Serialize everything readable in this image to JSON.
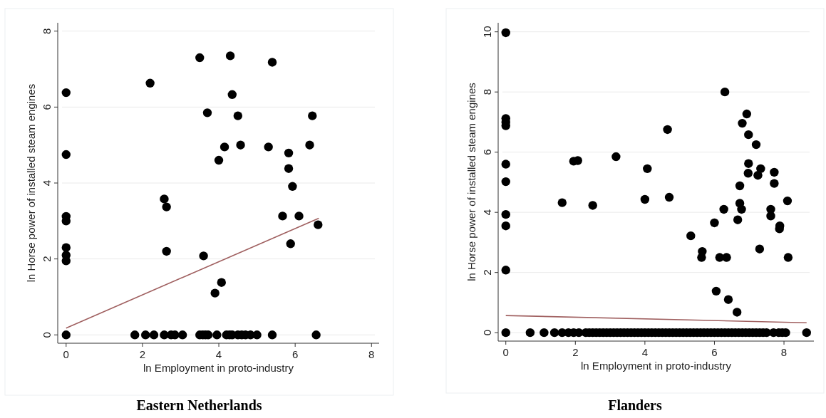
{
  "chart_data": [
    {
      "type": "scatter",
      "title": "Eastern Netherlands",
      "xlabel": "ln Employment in proto-industry",
      "ylabel": "ln Horse power of installed steam engines",
      "xlim": [
        -0.22,
        8.2
      ],
      "ylim": [
        -0.22,
        8.22
      ],
      "xticks": [
        0,
        2,
        4,
        6,
        8
      ],
      "yticks": [
        0,
        2,
        4,
        6,
        8
      ],
      "grid": "y",
      "series": [
        {
          "type": "scatter",
          "marker": "circle",
          "color": "#000000",
          "x": [
            0,
            0,
            0,
            0,
            0,
            0,
            0,
            0,
            2.2,
            3.5,
            4.3,
            5.4,
            4.35,
            3.7,
            4.5,
            6.45,
            4.15,
            4.57,
            5.3,
            6.38,
            4.0,
            5.83,
            5.83,
            5.93,
            2.57,
            2.63,
            5.67,
            6.1,
            6.6,
            5.88,
            2.63,
            3.6,
            4.07,
            3.9,
            1.8,
            2.08,
            2.3,
            2.57,
            2.75,
            2.85,
            3.05,
            3.5,
            3.58,
            3.65,
            3.72,
            3.95,
            4.2,
            4.28,
            4.35,
            4.5,
            4.6,
            4.7,
            4.83,
            5.0,
            5.4,
            6.55
          ],
          "values": [
            6.38,
            4.75,
            3.12,
            3.0,
            2.3,
            2.1,
            1.95,
            0,
            6.63,
            7.3,
            7.35,
            7.18,
            6.33,
            5.85,
            5.77,
            5.77,
            4.95,
            5.0,
            4.95,
            5.0,
            4.6,
            4.79,
            4.38,
            3.91,
            3.58,
            3.37,
            3.13,
            3.13,
            2.9,
            2.4,
            2.2,
            2.08,
            1.38,
            1.1,
            0,
            0,
            0,
            0,
            0,
            0,
            0,
            0,
            0,
            0,
            0,
            0,
            0,
            0,
            0,
            0,
            0,
            0,
            0,
            0,
            0,
            0
          ]
        },
        {
          "type": "line",
          "marker": "none",
          "color": "#a06060",
          "x": [
            0,
            6.62
          ],
          "values": [
            0.18,
            3.07
          ]
        }
      ]
    },
    {
      "type": "scatter",
      "title": "Flanders",
      "xlabel": "ln Employment in proto-industry",
      "ylabel": "ln Horse power of installed steam engines",
      "xlim": [
        -0.22,
        8.86
      ],
      "ylim": [
        -0.28,
        10.3
      ],
      "xticks": [
        0,
        2,
        4,
        6,
        8
      ],
      "yticks": [
        0,
        2,
        4,
        6,
        8,
        10
      ],
      "grid": "y",
      "series": [
        {
          "type": "scatter",
          "color": "#000000",
          "x": [
            0,
            0,
            0,
            0,
            0,
            0,
            0,
            0,
            0,
            0,
            1.95,
            2.07,
            3.17,
            4.07,
            4.65,
            6.3,
            6.93,
            6.8,
            6.98,
            7.2,
            6.98,
            6.97,
            7.25,
            7.33,
            7.72,
            7.72,
            6.73,
            1.62,
            2.5,
            4.0,
            4.7,
            8.1,
            6.73,
            6.78,
            6.27,
            7.62,
            7.62,
            6.67,
            6.0,
            7.88,
            7.87,
            5.32,
            5.65,
            5.63,
            6.15,
            6.35,
            7.3,
            8.12,
            6.05,
            6.4,
            6.65,
            0.7,
            1.1,
            1.4,
            1.62,
            1.8,
            1.95,
            2.1,
            2.3,
            2.4,
            2.5,
            2.6,
            2.7,
            2.8,
            2.9,
            3.0,
            3.1,
            3.2,
            3.3,
            3.4,
            3.5,
            3.6,
            3.7,
            3.8,
            3.9,
            4.0,
            4.1,
            4.2,
            4.3,
            4.4,
            4.5,
            4.6,
            4.7,
            4.8,
            4.9,
            5.0,
            5.1,
            5.2,
            5.3,
            5.4,
            5.5,
            5.6,
            5.7,
            5.8,
            5.9,
            6.0,
            6.1,
            6.2,
            6.3,
            6.4,
            6.5,
            6.6,
            6.7,
            6.8,
            6.9,
            7.0,
            7.1,
            7.2,
            7.3,
            7.4,
            7.5,
            7.7,
            7.85,
            7.95,
            8.05,
            8.65
          ],
          "marker": "circle",
          "values": [
            9.97,
            7.12,
            7.0,
            6.88,
            5.6,
            5.02,
            3.93,
            3.55,
            2.08,
            0,
            5.7,
            5.72,
            5.85,
            5.45,
            6.75,
            8.0,
            7.27,
            6.96,
            6.58,
            6.25,
            5.62,
            5.3,
            5.23,
            5.45,
            5.33,
            4.96,
            4.88,
            4.32,
            4.23,
            4.43,
            4.5,
            4.38,
            4.3,
            4.1,
            4.1,
            4.1,
            3.88,
            3.75,
            3.65,
            3.55,
            3.45,
            3.22,
            2.7,
            2.5,
            2.5,
            2.5,
            2.78,
            2.5,
            1.38,
            1.1,
            0.68,
            0,
            0,
            0,
            0,
            0,
            0,
            0,
            0,
            0,
            0,
            0,
            0,
            0,
            0,
            0,
            0,
            0,
            0,
            0,
            0,
            0,
            0,
            0,
            0,
            0,
            0,
            0,
            0,
            0,
            0,
            0,
            0,
            0,
            0,
            0,
            0,
            0,
            0,
            0,
            0,
            0,
            0,
            0,
            0,
            0,
            0,
            0,
            0,
            0,
            0,
            0,
            0,
            0,
            0,
            0,
            0,
            0,
            0,
            0,
            0,
            0,
            0,
            0,
            0,
            0
          ]
        },
        {
          "type": "line",
          "marker": "none",
          "color": "#a06060",
          "x": [
            0,
            8.65
          ],
          "values": [
            0.57,
            0.33
          ]
        }
      ]
    }
  ]
}
